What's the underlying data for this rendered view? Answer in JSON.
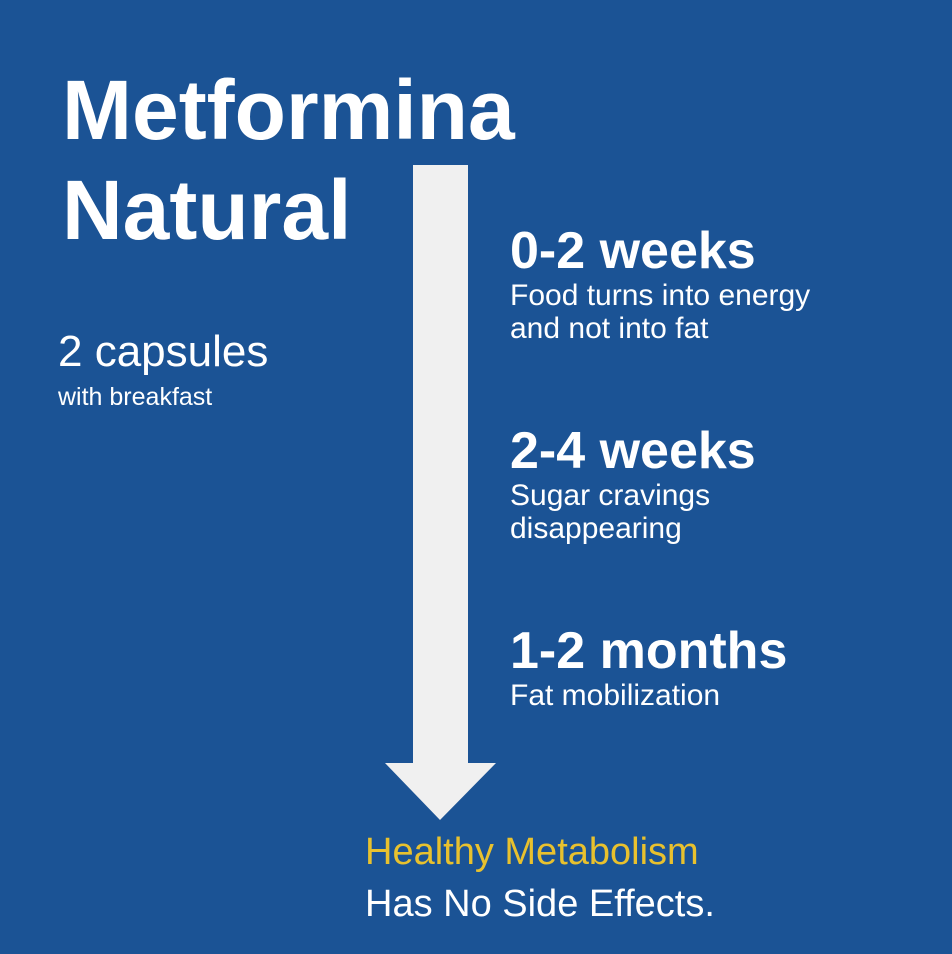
{
  "title": [
    "Metformina",
    "Natural"
  ],
  "dosage": {
    "amount": "2 capsules",
    "note": "with breakfast"
  },
  "timeline": [
    {
      "period": "0-2 weeks",
      "lines": [
        "Food turns into energy",
        "and not into fat"
      ]
    },
    {
      "period": "2-4 weeks",
      "lines": [
        "Sugar cravings",
        "disappearing"
      ]
    },
    {
      "period": "1-2 months",
      "lines": [
        "Fat mobilization"
      ]
    }
  ],
  "footer": {
    "highlight": "Healthy Metabolism",
    "text": "Has No Side Effects."
  }
}
